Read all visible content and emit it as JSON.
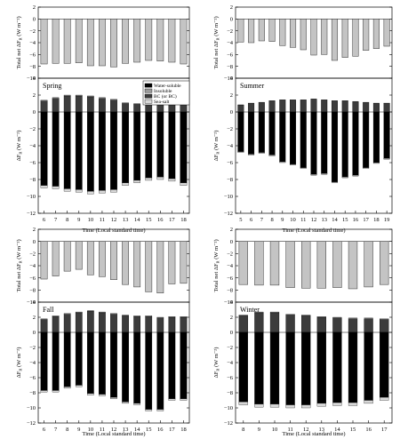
{
  "colors": {
    "total_bar": "#c4c4c4",
    "water_soluble": "#000000",
    "insoluble": "#9a9a9a",
    "bc": "#3c3c3c",
    "sea_salt": "#d8d8d8"
  },
  "legend": {
    "items": [
      "Water-soluble",
      "Insoluble",
      "BC (or BC)",
      "Sea-salt"
    ]
  },
  "labels": {
    "top_ylabel": "Total net ΔF",
    "top_ylabel_sub": "R",
    "top_ylabel_unit": " (W m⁻²)",
    "bottom_ylabel": "ΔF",
    "bottom_ylabel_sub": "R",
    "bottom_ylabel_unit": " (W m⁻²)",
    "xlabel": "Time (Local standard time)"
  },
  "chart_data": [
    {
      "type": "bar",
      "season": "Spring",
      "x": [
        6,
        7,
        8,
        9,
        10,
        11,
        12,
        13,
        14,
        15,
        16,
        17,
        18
      ],
      "total_net": {
        "ylim": [
          -10,
          2
        ],
        "yticks": [
          2,
          0,
          -2,
          -4,
          -6,
          -8,
          -10
        ],
        "values": [
          -7.6,
          -7.5,
          -7.5,
          -7.4,
          -7.9,
          -7.9,
          -8.1,
          -7.5,
          -7.3,
          -7.0,
          -7.1,
          -7.3,
          -7.6
        ]
      },
      "components": {
        "ylim": [
          -12,
          4
        ],
        "yticks": [
          4,
          2,
          0,
          -2,
          -4,
          -6,
          -8,
          -10,
          -12
        ],
        "bc": [
          1.3,
          1.6,
          1.9,
          1.9,
          1.8,
          1.6,
          1.4,
          1.0,
          0.9,
          0.9,
          1.0,
          1.1,
          1.1
        ],
        "insoluble": [
          0.1,
          0.1,
          0.1,
          0.1,
          0.1,
          0.1,
          0.1,
          0.1,
          0.1,
          0.1,
          0.1,
          0.1,
          0.1
        ],
        "water_soluble": [
          -8.7,
          -8.8,
          -9.1,
          -9.2,
          -9.4,
          -9.3,
          -9.2,
          -8.4,
          -8.1,
          -7.8,
          -7.7,
          -7.9,
          -8.4
        ],
        "sea_salt": [
          -0.3,
          -0.3,
          -0.3,
          -0.3,
          -0.3,
          -0.3,
          -0.3,
          -0.3,
          -0.3,
          -0.3,
          -0.3,
          -0.3,
          -0.3
        ]
      }
    },
    {
      "type": "bar",
      "season": "Summer",
      "x": [
        5,
        6,
        7,
        8,
        9,
        10,
        11,
        12,
        13,
        14,
        15,
        16,
        17,
        18,
        19
      ],
      "total_net": {
        "ylim": [
          -10,
          2
        ],
        "yticks": [
          2,
          0,
          -2,
          -4,
          -6,
          -8,
          -10
        ],
        "values": [
          -3.9,
          -4.0,
          -3.7,
          -3.8,
          -4.5,
          -4.8,
          -5.2,
          -6.1,
          -6.0,
          -7.0,
          -6.5,
          -6.3,
          -5.3,
          -5.0,
          -4.6
        ]
      },
      "components": {
        "ylim": [
          -12,
          4
        ],
        "yticks": [
          4,
          2,
          0,
          -2,
          -4,
          -6,
          -8,
          -10,
          -12
        ],
        "bc": [
          0.8,
          1.0,
          1.1,
          1.3,
          1.4,
          1.4,
          1.4,
          1.5,
          1.4,
          1.3,
          1.3,
          1.2,
          1.1,
          1.0,
          1.0
        ],
        "insoluble": [
          0.05,
          0.05,
          0.05,
          0.05,
          0.05,
          0.05,
          0.05,
          0.05,
          0.05,
          0.05,
          0.05,
          0.05,
          0.05,
          0.05,
          0.05
        ],
        "water_soluble": [
          -4.7,
          -5.0,
          -4.8,
          -5.1,
          -5.9,
          -6.2,
          -6.6,
          -7.4,
          -7.3,
          -8.3,
          -7.7,
          -7.5,
          -6.6,
          -6.0,
          -5.5
        ],
        "sea_salt": [
          -0.1,
          -0.1,
          -0.1,
          -0.1,
          -0.1,
          -0.1,
          -0.1,
          -0.1,
          -0.1,
          -0.1,
          -0.1,
          -0.1,
          -0.1,
          -0.1,
          -0.1
        ]
      }
    },
    {
      "type": "bar",
      "season": "Fall",
      "x": [
        6,
        7,
        8,
        9,
        10,
        11,
        12,
        13,
        14,
        15,
        16,
        17,
        18
      ],
      "total_net": {
        "ylim": [
          -10,
          2
        ],
        "yticks": [
          2,
          0,
          -2,
          -4,
          -6,
          -8,
          -10
        ],
        "values": [
          -6.2,
          -5.7,
          -4.9,
          -4.6,
          -5.5,
          -5.8,
          -6.3,
          -7.1,
          -7.5,
          -8.3,
          -8.5,
          -7.0,
          -6.9
        ]
      },
      "components": {
        "ylim": [
          -12,
          4
        ],
        "yticks": [
          4,
          2,
          0,
          -2,
          -4,
          -6,
          -8,
          -10,
          -12
        ],
        "bc": [
          1.7,
          2.1,
          2.4,
          2.6,
          2.8,
          2.6,
          2.4,
          2.2,
          2.1,
          2.1,
          1.9,
          2.0,
          2.0
        ],
        "insoluble": [
          0.1,
          0.1,
          0.1,
          0.1,
          0.1,
          0.1,
          0.1,
          0.1,
          0.1,
          0.1,
          0.1,
          0.1,
          0.1
        ],
        "water_soluble": [
          -7.7,
          -7.7,
          -7.2,
          -7.0,
          -8.1,
          -8.2,
          -8.6,
          -9.2,
          -9.4,
          -10.2,
          -10.2,
          -8.8,
          -8.8
        ],
        "sea_salt": [
          -0.2,
          -0.2,
          -0.2,
          -0.2,
          -0.2,
          -0.2,
          -0.2,
          -0.2,
          -0.2,
          -0.2,
          -0.2,
          -0.2,
          -0.2
        ]
      }
    },
    {
      "type": "bar",
      "season": "Winter",
      "x": [
        8,
        9,
        10,
        11,
        12,
        13,
        14,
        15,
        16,
        17
      ],
      "total_net": {
        "ylim": [
          -10,
          2
        ],
        "yticks": [
          2,
          0,
          -2,
          -4,
          -6,
          -8,
          -10
        ],
        "values": [
          -7.1,
          -7.2,
          -7.2,
          -7.6,
          -7.7,
          -7.7,
          -7.6,
          -7.8,
          -7.5,
          -7.1
        ]
      },
      "components": {
        "ylim": [
          -12,
          4
        ],
        "yticks": [
          4,
          2,
          0,
          -2,
          -4,
          -6,
          -8,
          -10,
          -12
        ],
        "bc": [
          2.2,
          2.6,
          2.6,
          2.3,
          2.2,
          2.0,
          1.9,
          1.8,
          1.8,
          1.7
        ],
        "insoluble": [
          0.1,
          0.1,
          0.1,
          0.1,
          0.1,
          0.1,
          0.1,
          0.1,
          0.1,
          0.1
        ],
        "water_soluble": [
          -9.2,
          -9.5,
          -9.5,
          -9.6,
          -9.6,
          -9.4,
          -9.3,
          -9.3,
          -9.0,
          -8.6
        ],
        "sea_salt": [
          -0.4,
          -0.4,
          -0.4,
          -0.4,
          -0.4,
          -0.4,
          -0.4,
          -0.4,
          -0.4,
          -0.4
        ]
      }
    }
  ]
}
